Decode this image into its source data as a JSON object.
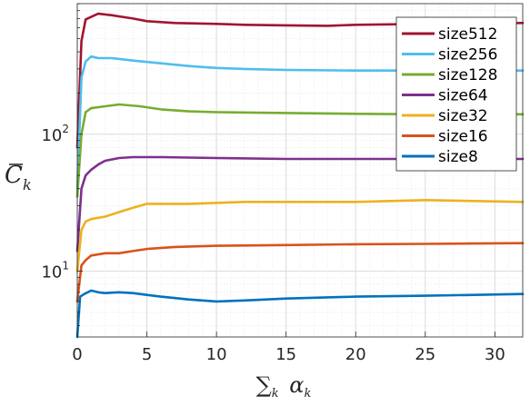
{
  "chart_data": {
    "type": "line",
    "title": "",
    "xlabel": "∑k αk",
    "ylabel": "C̄k",
    "xlim": [
      0,
      32
    ],
    "ylim": [
      3.3,
      900
    ],
    "yscale": "log",
    "grid": true,
    "minor_grid": true,
    "legend_position": "top-right",
    "x_ticks": [
      0,
      5,
      10,
      15,
      20,
      25,
      30
    ],
    "y_ticks": [
      10,
      100
    ],
    "y_tick_labels": [
      "10¹",
      "10²"
    ],
    "series": [
      {
        "name": "size512",
        "color": "#A2142F",
        "x": [
          0.0,
          0.3,
          0.6,
          1.0,
          1.5,
          2.5,
          4,
          5,
          7,
          10,
          12,
          15,
          18,
          20,
          25,
          32
        ],
        "y": [
          80,
          480,
          690,
          720,
          760,
          740,
          700,
          670,
          650,
          640,
          630,
          625,
          620,
          630,
          640,
          650
        ]
      },
      {
        "name": "size256",
        "color": "#4DBEEE",
        "x": [
          0.0,
          0.3,
          0.6,
          1.0,
          1.5,
          2.5,
          4,
          6,
          8,
          10,
          12,
          15,
          20,
          25,
          32
        ],
        "y": [
          40,
          260,
          340,
          370,
          360,
          360,
          345,
          330,
          315,
          305,
          300,
          295,
          292,
          292,
          292
        ]
      },
      {
        "name": "size128",
        "color": "#77AC30",
        "x": [
          0.0,
          0.3,
          0.6,
          1.0,
          2.0,
          3.0,
          4.5,
          6,
          8,
          10,
          15,
          20,
          25,
          32
        ],
        "y": [
          35,
          100,
          145,
          155,
          160,
          165,
          160,
          152,
          147,
          145,
          143,
          141,
          140,
          140
        ]
      },
      {
        "name": "size64",
        "color": "#7E2F8E",
        "x": [
          0.0,
          0.3,
          0.6,
          1.0,
          1.5,
          2.0,
          3.0,
          4.0,
          6,
          10,
          15,
          20,
          25,
          32
        ],
        "y": [
          14,
          40,
          50,
          55,
          60,
          64,
          67,
          68,
          68,
          67,
          66,
          66,
          66,
          66
        ]
      },
      {
        "name": "size32",
        "color": "#EDB120",
        "x": [
          0.0,
          0.3,
          0.6,
          1.0,
          2.0,
          3.0,
          4.0,
          5.0,
          8,
          12,
          15,
          20,
          25,
          32
        ],
        "y": [
          10,
          20,
          23,
          24,
          25,
          27,
          29,
          31,
          31,
          32,
          32,
          32,
          33,
          32
        ]
      },
      {
        "name": "size16",
        "color": "#D95319",
        "x": [
          0.0,
          0.3,
          0.6,
          1.0,
          2.0,
          3.0,
          4.0,
          5.0,
          7,
          10,
          15,
          20,
          25,
          32
        ],
        "y": [
          6,
          11,
          12,
          13,
          13.5,
          13.5,
          14,
          14.5,
          15,
          15.3,
          15.5,
          15.7,
          15.8,
          16
        ]
      },
      {
        "name": "size8",
        "color": "#0072BD",
        "x": [
          0.0,
          0.2,
          0.5,
          1.0,
          1.5,
          2.0,
          3.0,
          4.0,
          5.0,
          6,
          8,
          10,
          12,
          15,
          20,
          25,
          32
        ],
        "y": [
          3.3,
          6.5,
          6.8,
          7.2,
          7.0,
          6.9,
          7.0,
          6.9,
          6.7,
          6.5,
          6.2,
          6.0,
          6.1,
          6.3,
          6.5,
          6.6,
          6.8
        ]
      }
    ]
  }
}
